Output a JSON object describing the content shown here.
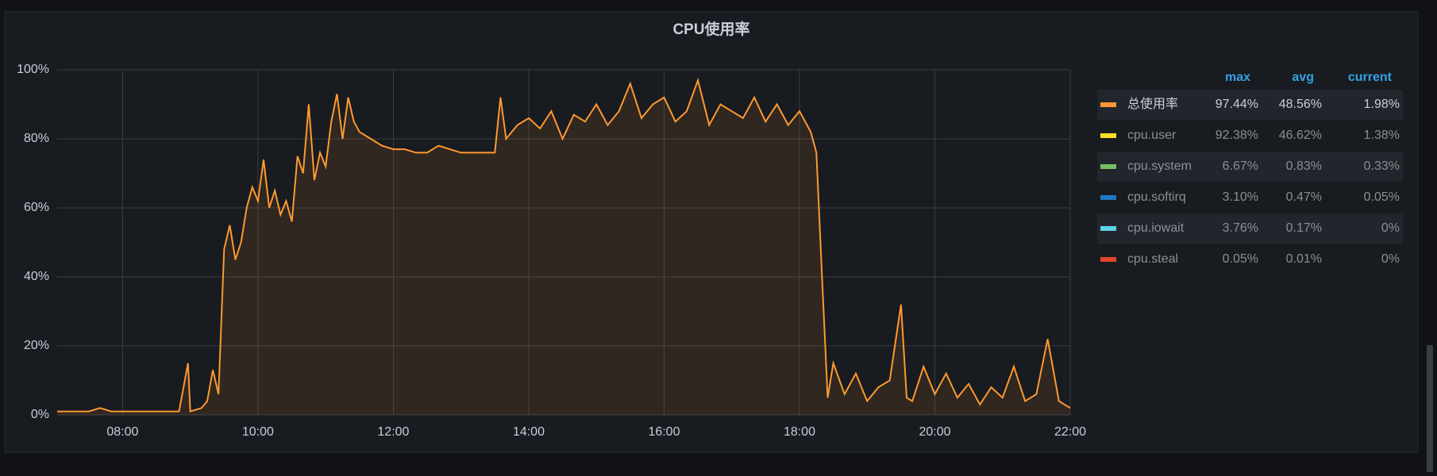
{
  "chart_data": {
    "type": "line",
    "title": "CPU使用率",
    "x": [
      "07:02",
      "07:10",
      "07:20",
      "07:30",
      "07:40",
      "07:50",
      "08:00",
      "08:10",
      "08:20",
      "08:30",
      "08:40",
      "08:50",
      "08:58",
      "09:00",
      "09:10",
      "09:15",
      "09:20",
      "09:25",
      "09:30",
      "09:35",
      "09:40",
      "09:45",
      "09:50",
      "09:55",
      "10:00",
      "10:05",
      "10:10",
      "10:15",
      "10:20",
      "10:25",
      "10:30",
      "10:35",
      "10:40",
      "10:45",
      "10:50",
      "10:55",
      "11:00",
      "11:05",
      "11:10",
      "11:15",
      "11:20",
      "11:25",
      "11:30",
      "11:40",
      "11:50",
      "12:00",
      "12:10",
      "12:20",
      "12:30",
      "12:40",
      "12:50",
      "13:00",
      "13:10",
      "13:20",
      "13:30",
      "13:35",
      "13:40",
      "13:50",
      "14:00",
      "14:10",
      "14:20",
      "14:30",
      "14:40",
      "14:50",
      "15:00",
      "15:10",
      "15:20",
      "15:30",
      "15:40",
      "15:50",
      "16:00",
      "16:10",
      "16:20",
      "16:30",
      "16:40",
      "16:50",
      "17:00",
      "17:10",
      "17:20",
      "17:30",
      "17:40",
      "17:50",
      "18:00",
      "18:10",
      "18:15",
      "18:20",
      "18:25",
      "18:30",
      "18:40",
      "18:50",
      "19:00",
      "19:10",
      "19:20",
      "19:30",
      "19:35",
      "19:40",
      "19:50",
      "20:00",
      "20:10",
      "20:20",
      "20:30",
      "20:40",
      "20:50",
      "21:00",
      "21:10",
      "21:20",
      "21:30",
      "21:40",
      "21:50",
      "22:00"
    ],
    "series": [
      {
        "color": "#ff9830",
        "values": [
          1,
          1,
          1,
          1,
          2,
          1,
          1,
          1,
          1,
          1,
          1,
          1,
          15,
          1,
          2,
          4,
          13,
          6,
          48,
          55,
          45,
          50,
          60,
          66,
          62,
          74,
          60,
          65,
          58,
          62,
          56,
          75,
          70,
          90,
          68,
          76,
          72,
          85,
          93,
          80,
          92,
          85,
          82,
          80,
          78,
          77,
          77,
          76,
          76,
          78,
          77,
          76,
          76,
          76,
          76,
          92,
          80,
          84,
          86,
          83,
          88,
          80,
          87,
          85,
          90,
          84,
          88,
          96,
          86,
          90,
          92,
          85,
          88,
          97,
          84,
          90,
          88,
          86,
          92,
          85,
          90,
          84,
          88,
          82,
          76,
          40,
          5,
          15,
          6,
          12,
          4,
          8,
          10,
          32,
          5,
          4,
          14,
          6,
          12,
          5,
          9,
          3,
          8,
          5,
          14,
          4,
          6,
          22,
          4,
          2
        ]
      }
    ],
    "xlim": [
      "07:02",
      "22:00"
    ],
    "xticks": [
      "08:00",
      "10:00",
      "12:00",
      "14:00",
      "16:00",
      "18:00",
      "20:00",
      "22:00"
    ],
    "ylim": [
      0,
      100
    ],
    "yticks": [
      {
        "value": 0,
        "label": "0%"
      },
      {
        "value": 20,
        "label": "20%"
      },
      {
        "value": 40,
        "label": "40%"
      },
      {
        "value": 60,
        "label": "60%"
      },
      {
        "value": 80,
        "label": "80%"
      },
      {
        "value": 100,
        "label": "100%"
      }
    ],
    "grid": true,
    "legend": {
      "columns": [
        "max",
        "avg",
        "current"
      ],
      "rows": [
        {
          "name": "总使用率",
          "color": "#ff9830",
          "max": "97.44%",
          "avg": "48.56%",
          "current": "1.98%"
        },
        {
          "name": "cpu.user",
          "color": "#fade2a",
          "max": "92.38%",
          "avg": "46.62%",
          "current": "1.38%"
        },
        {
          "name": "cpu.system",
          "color": "#73bf69",
          "max": "6.67%",
          "avg": "0.83%",
          "current": "0.33%"
        },
        {
          "name": "cpu.softirq",
          "color": "#1f78c1",
          "max": "3.10%",
          "avg": "0.47%",
          "current": "0.05%"
        },
        {
          "name": "cpu.iowait",
          "color": "#5ad4e6",
          "max": "3.76%",
          "avg": "0.17%",
          "current": "0%"
        },
        {
          "name": "cpu.steal",
          "color": "#e0452f",
          "max": "0.05%",
          "avg": "0.01%",
          "current": "0%"
        }
      ]
    }
  }
}
